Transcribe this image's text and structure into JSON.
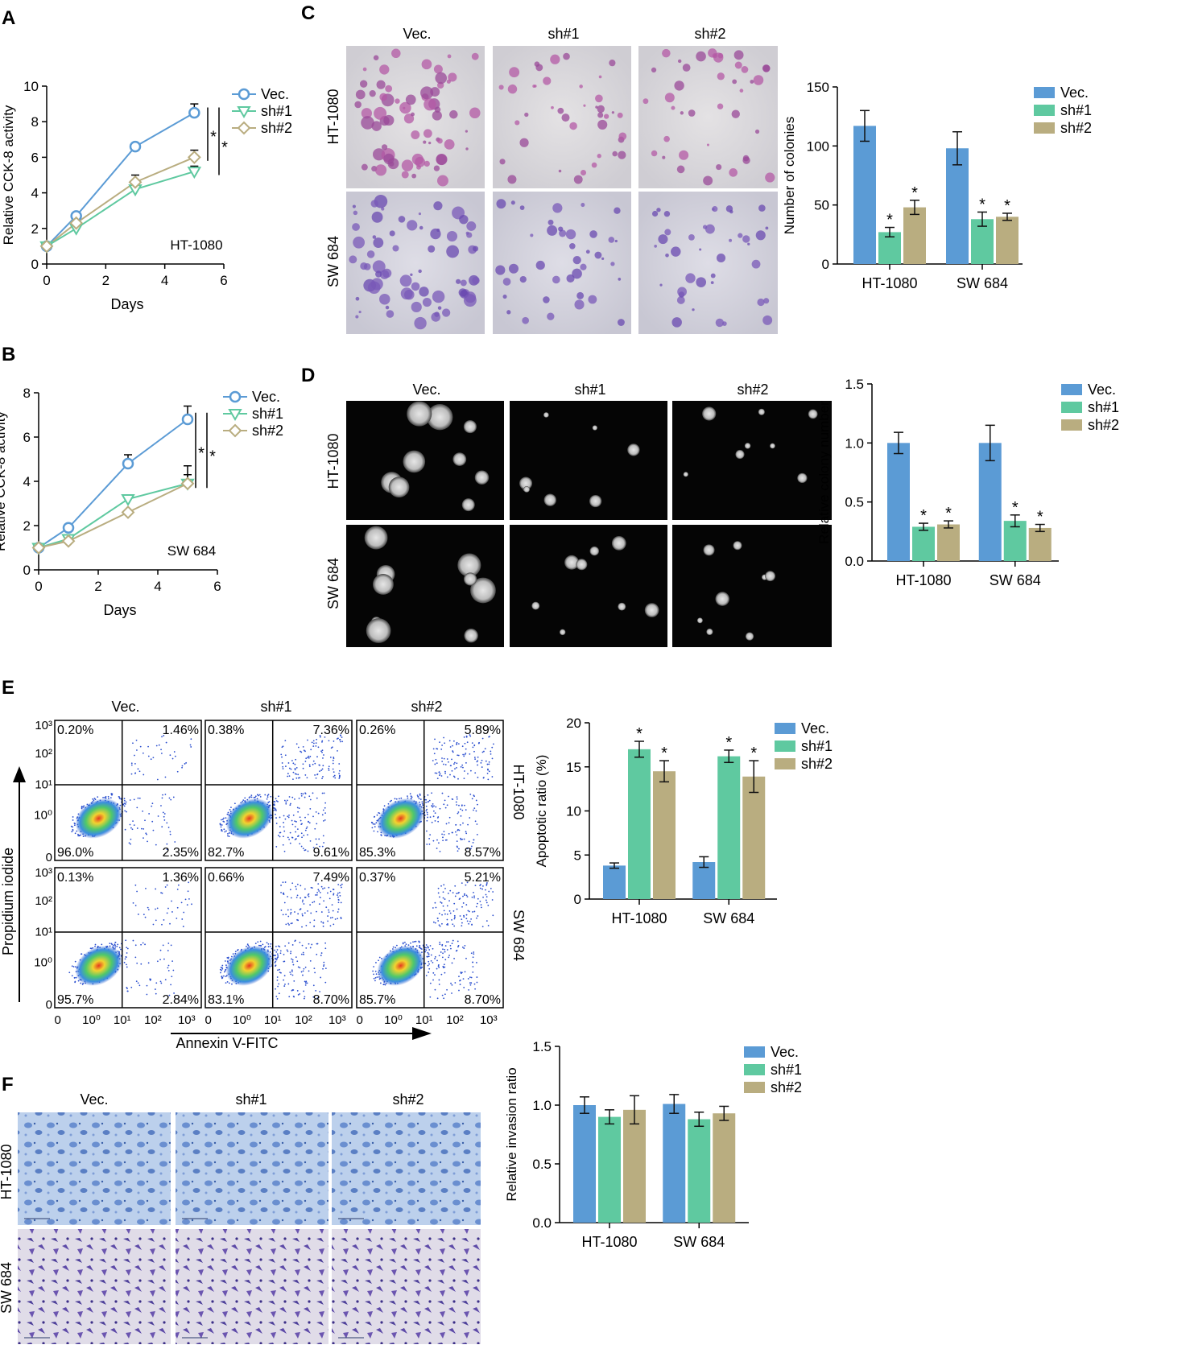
{
  "colors": {
    "vec": "#5b9bd5",
    "sh1": "#5fc9a0",
    "sh2": "#b9ad80",
    "axis": "#000000"
  },
  "panels": {
    "A": "A",
    "B": "B",
    "C": "C",
    "D": "D",
    "E": "E",
    "F": "F"
  },
  "legend": [
    "Vec.",
    "sh#1",
    "sh#2"
  ],
  "groups": [
    "Vec.",
    "sh#1",
    "sh#2"
  ],
  "cells": [
    "HT-1080",
    "SW 684"
  ],
  "flow": {
    "xlabel": "Annexin V-FITC",
    "ylabel": "Propidium iodide",
    "ticks_y": [
      "10³",
      "10²",
      "10¹",
      "10⁰",
      "0"
    ],
    "ticks_x": [
      "0",
      "10⁰",
      "10¹",
      "10²",
      "10³"
    ],
    "quadrants": [
      [
        {
          "ul": "0.20%",
          "ur": "1.46%",
          "ll": "96.0%",
          "lr": "2.35%"
        },
        {
          "ul": "0.38%",
          "ur": "7.36%",
          "ll": "82.7%",
          "lr": "9.61%"
        },
        {
          "ul": "0.26%",
          "ur": "5.89%",
          "ll": "85.3%",
          "lr": "8.57%"
        }
      ],
      [
        {
          "ul": "0.13%",
          "ur": "1.36%",
          "ll": "95.7%",
          "lr": "2.84%"
        },
        {
          "ul": "0.66%",
          "ur": "7.49%",
          "ll": "83.1%",
          "lr": "8.70%"
        },
        {
          "ul": "0.37%",
          "ur": "5.21%",
          "ll": "85.7%",
          "lr": "8.70%"
        }
      ]
    ]
  },
  "chart_data": [
    {
      "panel": "A",
      "type": "line",
      "xlabel": "Days",
      "ylabel": "Relative CCK-8 activity",
      "xlim": [
        0,
        6
      ],
      "ylim": [
        0,
        10
      ],
      "xticks": [
        0,
        2,
        4,
        6
      ],
      "yticks": [
        0,
        2,
        4,
        6,
        8,
        10
      ],
      "annotation": "HT-1080",
      "significance": [
        "*",
        "*"
      ],
      "series": [
        {
          "name": "Vec.",
          "x": [
            0,
            1,
            3,
            5
          ],
          "y": [
            1.0,
            2.7,
            6.6,
            8.5
          ],
          "err": [
            0.05,
            0.1,
            0.2,
            0.5
          ],
          "marker": "circle"
        },
        {
          "name": "sh#1",
          "x": [
            0,
            1,
            3,
            5
          ],
          "y": [
            1.0,
            2.0,
            4.2,
            5.2
          ],
          "err": [
            0.05,
            0.1,
            0.2,
            0.3
          ],
          "marker": "triangle"
        },
        {
          "name": "sh#2",
          "x": [
            0,
            1,
            3,
            5
          ],
          "y": [
            1.0,
            2.3,
            4.6,
            6.0
          ],
          "err": [
            0.05,
            0.1,
            0.4,
            0.4
          ],
          "marker": "diamond"
        }
      ]
    },
    {
      "panel": "B",
      "type": "line",
      "xlabel": "Days",
      "ylabel": "Relative CCK-8 activity",
      "xlim": [
        0,
        6
      ],
      "ylim": [
        0,
        8
      ],
      "xticks": [
        0,
        2,
        4,
        6
      ],
      "yticks": [
        0,
        2,
        4,
        6,
        8
      ],
      "annotation": "SW 684",
      "significance": [
        "*",
        "*"
      ],
      "series": [
        {
          "name": "Vec.",
          "x": [
            0,
            1,
            3,
            5
          ],
          "y": [
            1.0,
            1.9,
            4.8,
            6.8
          ],
          "err": [
            0.05,
            0.1,
            0.4,
            0.6
          ],
          "marker": "circle"
        },
        {
          "name": "sh#1",
          "x": [
            0,
            1,
            3,
            5
          ],
          "y": [
            1.0,
            1.4,
            3.2,
            3.9
          ],
          "err": [
            0.05,
            0.1,
            0.1,
            0.4
          ],
          "marker": "triangle"
        },
        {
          "name": "sh#2",
          "x": [
            0,
            1,
            3,
            5
          ],
          "y": [
            1.0,
            1.3,
            2.6,
            3.9
          ],
          "err": [
            0.05,
            0.1,
            0.1,
            0.8
          ],
          "marker": "diamond"
        }
      ]
    },
    {
      "panel": "C",
      "type": "bar",
      "ylabel": "Number of colonies",
      "ylim": [
        0,
        150
      ],
      "yticks": [
        0,
        50,
        100,
        150
      ],
      "categories": [
        "HT-1080",
        "SW 684"
      ],
      "series": [
        {
          "name": "Vec.",
          "values": [
            117,
            98
          ],
          "err": [
            13,
            14
          ],
          "sig": [
            false,
            false
          ]
        },
        {
          "name": "sh#1",
          "values": [
            27,
            38
          ],
          "err": [
            4,
            6
          ],
          "sig": [
            true,
            true
          ]
        },
        {
          "name": "sh#2",
          "values": [
            48,
            40
          ],
          "err": [
            6,
            3
          ],
          "sig": [
            true,
            true
          ]
        }
      ]
    },
    {
      "panel": "D",
      "type": "bar",
      "ylabel": "Relative colony number",
      "ylim": [
        0,
        1.5
      ],
      "yticks": [
        0.0,
        0.5,
        1.0,
        1.5
      ],
      "categories": [
        "HT-1080",
        "SW 684"
      ],
      "series": [
        {
          "name": "Vec.",
          "values": [
            1.0,
            1.0
          ],
          "err": [
            0.09,
            0.15
          ],
          "sig": [
            false,
            false
          ]
        },
        {
          "name": "sh#1",
          "values": [
            0.29,
            0.34
          ],
          "err": [
            0.03,
            0.05
          ],
          "sig": [
            true,
            true
          ]
        },
        {
          "name": "sh#2",
          "values": [
            0.31,
            0.28
          ],
          "err": [
            0.03,
            0.03
          ],
          "sig": [
            true,
            true
          ]
        }
      ]
    },
    {
      "panel": "E",
      "type": "bar",
      "ylabel": "Apoptotic ratio (%)",
      "ylim": [
        0,
        20
      ],
      "yticks": [
        0,
        5,
        10,
        15,
        20
      ],
      "categories": [
        "HT-1080",
        "SW 684"
      ],
      "series": [
        {
          "name": "Vec.",
          "values": [
            3.8,
            4.2
          ],
          "err": [
            0.3,
            0.6
          ],
          "sig": [
            false,
            false
          ]
        },
        {
          "name": "sh#1",
          "values": [
            17.0,
            16.2
          ],
          "err": [
            0.9,
            0.7
          ],
          "sig": [
            true,
            true
          ]
        },
        {
          "name": "sh#2",
          "values": [
            14.5,
            13.9
          ],
          "err": [
            1.2,
            1.8
          ],
          "sig": [
            true,
            true
          ]
        }
      ]
    },
    {
      "panel": "F",
      "type": "bar",
      "ylabel": "Relative invasion ratio",
      "ylim": [
        0,
        1.5
      ],
      "yticks": [
        0.0,
        0.5,
        1.0,
        1.5
      ],
      "categories": [
        "HT-1080",
        "SW 684"
      ],
      "series": [
        {
          "name": "Vec.",
          "values": [
            1.0,
            1.01
          ],
          "err": [
            0.07,
            0.08
          ],
          "sig": [
            false,
            false
          ]
        },
        {
          "name": "sh#1",
          "values": [
            0.9,
            0.88
          ],
          "err": [
            0.06,
            0.06
          ],
          "sig": [
            false,
            false
          ]
        },
        {
          "name": "sh#2",
          "values": [
            0.96,
            0.93
          ],
          "err": [
            0.12,
            0.06
          ],
          "sig": [
            false,
            false
          ]
        }
      ]
    }
  ]
}
